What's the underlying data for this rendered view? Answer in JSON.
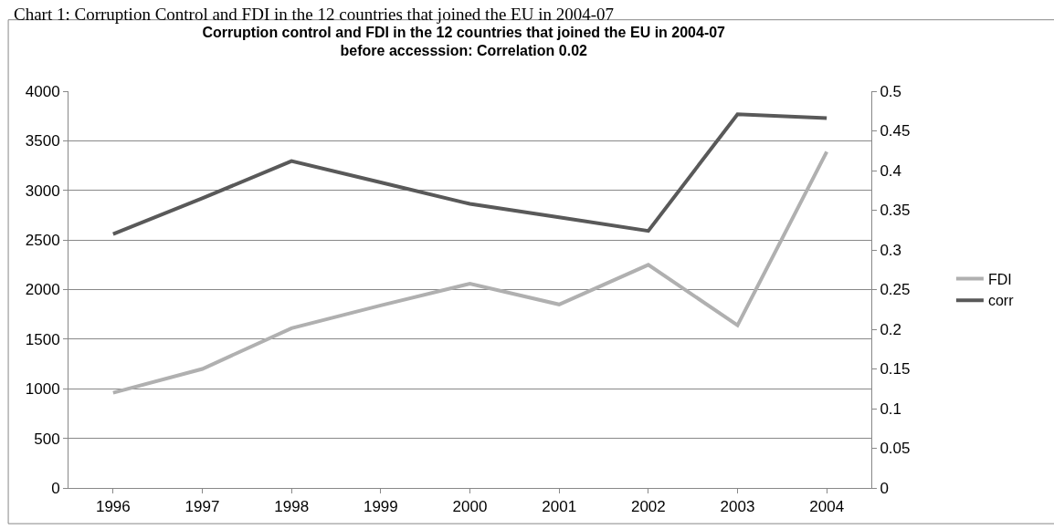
{
  "chart_data": {
    "type": "line",
    "title": "Corruption control and FDI in the 12 countries that joined the EU in 2004-07\nbefore accesssion: Correlation 0.02",
    "annotations": [
      "Chart 1: Corruption Control and FDI in the 12 countries that joined the EU in 2004-07"
    ],
    "categories": [
      "1996",
      "1997",
      "1998",
      "1999",
      "2000",
      "2001",
      "2002",
      "2003",
      "2004"
    ],
    "series": [
      {
        "name": "FDI",
        "color": "#b0b0b0",
        "values": [
          960,
          1200,
          1610,
          1840,
          2060,
          1850,
          2250,
          1640,
          3390
        ]
      },
      {
        "name": "corr",
        "color": "#595959",
        "axis": "y2",
        "values": [
          0.32,
          0.365,
          0.412,
          0.385,
          0.358,
          0.341,
          0.324,
          0.471,
          0.466
        ]
      }
    ],
    "ylim": [
      0,
      4000
    ],
    "yticks": [
      0,
      500,
      1000,
      1500,
      2000,
      2500,
      3000,
      3500,
      4000
    ],
    "y2lim": [
      0,
      0.5
    ],
    "y2ticks": [
      0,
      0.05,
      0.1,
      0.15,
      0.2,
      0.25,
      0.3,
      0.35,
      0.4,
      0.45,
      0.5
    ],
    "grid": "y",
    "legend": "right",
    "marker": "none",
    "line_style": "solid"
  }
}
